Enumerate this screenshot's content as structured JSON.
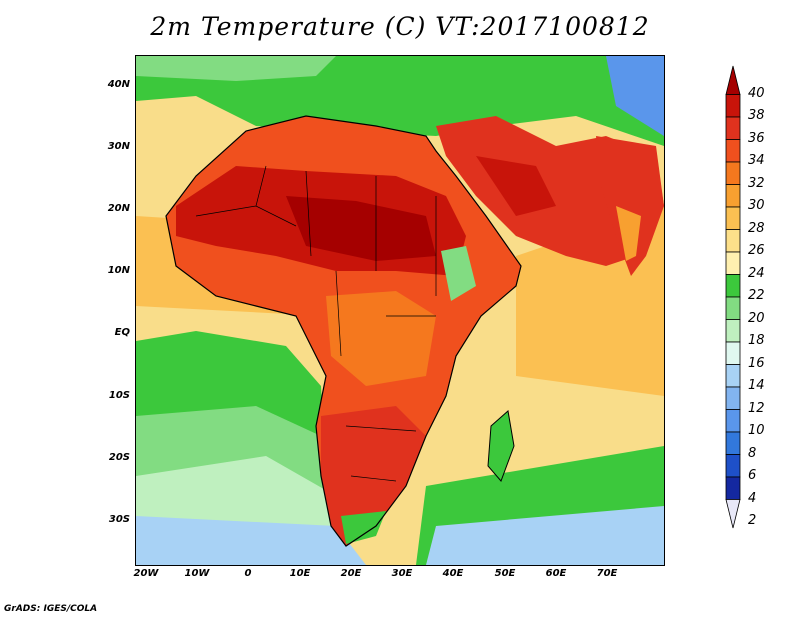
{
  "title": "2m Temperature (C) VT:2017100812",
  "footer": "GrADS: IGES/COLA",
  "map": {
    "lon_range": [
      -23,
      80
    ],
    "lat_range": [
      -37,
      45
    ],
    "x_ticks": [
      "20W",
      "10W",
      "0",
      "10E",
      "20E",
      "30E",
      "40E",
      "50E",
      "60E",
      "70E"
    ],
    "y_ticks": [
      "40N",
      "30N",
      "20N",
      "10N",
      "EQ",
      "10S",
      "20S",
      "30S"
    ]
  },
  "colorbar": {
    "levels": [
      "40",
      "38",
      "36",
      "34",
      "32",
      "30",
      "28",
      "26",
      "24",
      "22",
      "20",
      "18",
      "16",
      "14",
      "12",
      "10",
      "8",
      "6",
      "4",
      "2"
    ],
    "colors": [
      "#a50000",
      "#c8140a",
      "#e0321e",
      "#f0501e",
      "#f5781e",
      "#f8a030",
      "#fbc052",
      "#fde08a",
      "#fff0b0",
      "#3cc83c",
      "#82dc82",
      "#bff0bf",
      "#e0f8f0",
      "#a8d2f5",
      "#82b4f0",
      "#5a96eb",
      "#3278dc",
      "#1e50c8",
      "#1428a0",
      "#e8e8f8"
    ]
  }
}
